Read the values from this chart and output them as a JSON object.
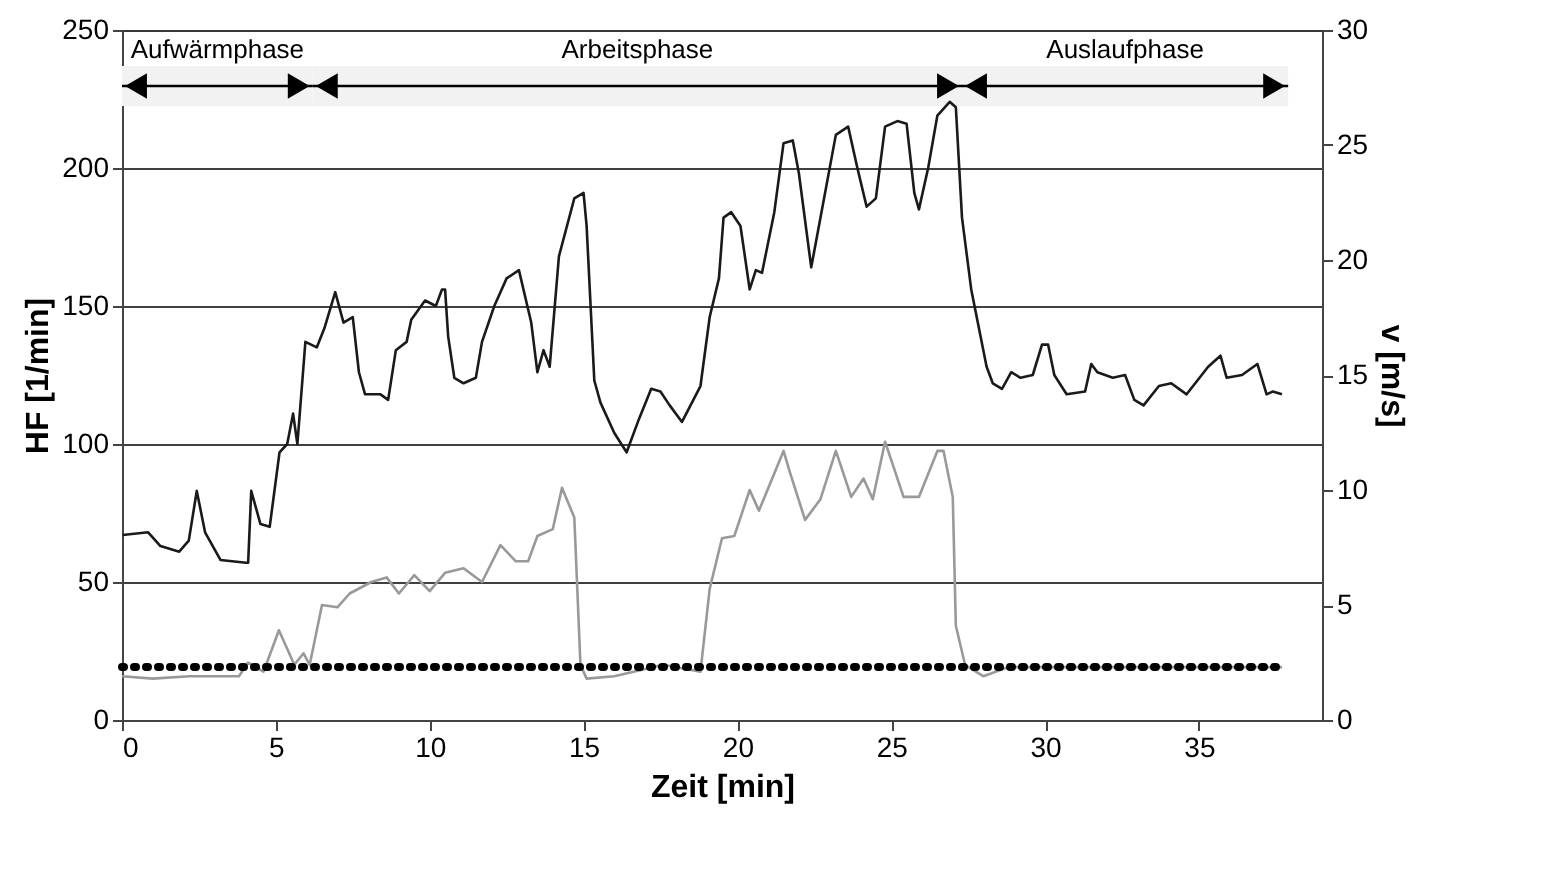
{
  "chart_data": {
    "type": "line",
    "xlabel": "Zeit [min]",
    "ylabel": "HF [1/min]",
    "y2label": "v [m/s]",
    "xlim": [
      0,
      39
    ],
    "xticks": [
      0,
      5,
      10,
      15,
      20,
      25,
      30,
      35
    ],
    "ylim": [
      0,
      250
    ],
    "yticks": [
      0,
      50,
      100,
      150,
      200,
      250
    ],
    "y2lim": [
      0,
      30
    ],
    "y2ticks": [
      0,
      5,
      10,
      15,
      20,
      25,
      30
    ],
    "grid": "y",
    "series": [
      {
        "color": "#1a1a1a",
        "axis": "y",
        "line_style": "solid",
        "x": [
          0.02,
          0.85,
          1.25,
          1.86,
          2.17,
          2.43,
          2.7,
          3.2,
          4.03,
          4.1,
          4.2,
          4.5,
          4.8,
          5.12,
          5.37,
          5.56,
          5.7,
          5.96,
          6.33,
          6.58,
          6.93,
          7.2,
          7.5,
          7.7,
          7.9,
          8.4,
          8.65,
          8.9,
          9.25,
          9.4,
          9.85,
          10.2,
          10.4,
          10.5,
          10.6,
          10.8,
          11.1,
          11.5,
          11.7,
          12.1,
          12.5,
          12.9,
          13.3,
          13.5,
          13.7,
          13.9,
          14.2,
          14.7,
          15.0,
          15.1,
          15.35,
          15.55,
          16.0,
          16.4,
          16.8,
          17.2,
          17.5,
          17.8,
          18.2,
          18.8,
          19.1,
          19.4,
          19.55,
          19.8,
          20.1,
          20.4,
          20.6,
          20.8,
          21.2,
          21.5,
          21.8,
          22.0,
          22.4,
          22.7,
          23.2,
          23.6,
          23.9,
          24.2,
          24.5,
          24.8,
          25.2,
          25.5,
          25.75,
          25.9,
          26.2,
          26.5,
          26.9,
          27.1,
          27.3,
          27.6,
          28.1,
          28.3,
          28.6,
          28.9,
          29.2,
          29.6,
          29.9,
          30.1,
          30.3,
          30.7,
          31.3,
          31.5,
          31.7,
          32.2,
          32.6,
          32.9,
          33.2,
          33.7,
          34.1,
          34.6,
          35.3,
          35.7,
          35.9,
          36.4,
          36.9,
          37.2,
          37.4,
          37.7
        ],
        "values": [
          67,
          68,
          63,
          61,
          65,
          83,
          68,
          58,
          57,
          57,
          83,
          71,
          70,
          97,
          100,
          111,
          100,
          137,
          135,
          142,
          155,
          144,
          146,
          126,
          118,
          118,
          116,
          134,
          137,
          145,
          152,
          150,
          156,
          156,
          139,
          124,
          122,
          124,
          137,
          150,
          160,
          163,
          144,
          126,
          134,
          128,
          168,
          189,
          191,
          179,
          123,
          115,
          104,
          97,
          109,
          120,
          119,
          114,
          108,
          121,
          146,
          160,
          182,
          184,
          179,
          156,
          163,
          162,
          184,
          209,
          210,
          198,
          164,
          182,
          212,
          215,
          200,
          186,
          189,
          215,
          217,
          216,
          191,
          185,
          200,
          219,
          224,
          222,
          182,
          156,
          128,
          122,
          120,
          126,
          124,
          125,
          136,
          136,
          125,
          118,
          119,
          129,
          126,
          124,
          125,
          116,
          114,
          121,
          122,
          118,
          128,
          132,
          124,
          125,
          129,
          118,
          119,
          118
        ]
      },
      {
        "color": "#999999",
        "axis": "y2",
        "line_style": "solid",
        "x": [
          0.0,
          1.0,
          2.2,
          3.8,
          4.1,
          4.6,
          5.1,
          5.6,
          5.9,
          6.1,
          6.5,
          7.0,
          7.4,
          8.1,
          8.6,
          9.0,
          9.5,
          10.0,
          10.5,
          11.1,
          11.7,
          12.3,
          12.8,
          13.2,
          13.5,
          14.0,
          14.3,
          14.7,
          14.9,
          15.1,
          16.0,
          17.6,
          18.8,
          19.1,
          19.5,
          19.9,
          20.4,
          20.7,
          21.5,
          21.7,
          22.2,
          22.7,
          23.2,
          23.7,
          24.1,
          24.4,
          24.8,
          25.4,
          25.9,
          26.5,
          26.7,
          27.0,
          27.1,
          27.4,
          28.0,
          28.8,
          37.7
        ],
        "values": [
          1.9,
          1.8,
          1.9,
          1.9,
          2.5,
          2.1,
          3.9,
          2.4,
          2.9,
          2.4,
          5.0,
          4.9,
          5.5,
          6.0,
          6.2,
          5.5,
          6.3,
          5.6,
          6.4,
          6.6,
          6.0,
          7.6,
          6.9,
          6.9,
          8.0,
          8.3,
          10.1,
          8.8,
          2.4,
          1.8,
          1.9,
          2.4,
          2.1,
          5.7,
          7.9,
          8.0,
          10.0,
          9.1,
          11.7,
          10.8,
          8.7,
          9.6,
          11.7,
          9.7,
          10.5,
          9.6,
          12.1,
          9.7,
          9.7,
          11.7,
          11.7,
          9.7,
          4.1,
          2.4,
          1.9,
          2.3,
          2.3
        ]
      },
      {
        "color": "#000000",
        "axis": "y2",
        "line_style": "dotted",
        "x": [
          0.0,
          37.7
        ],
        "values": [
          2.3,
          2.3
        ]
      }
    ],
    "bands": [
      {
        "axis": "x",
        "from": 0,
        "to": 6.2,
        "label": "Aufwärmphase"
      },
      {
        "axis": "x",
        "from": 6.2,
        "to": 27.3,
        "label": "Arbeitsphase"
      },
      {
        "axis": "x",
        "from": 27.3,
        "to": 37.9,
        "label": "Auslaufphase"
      }
    ]
  }
}
